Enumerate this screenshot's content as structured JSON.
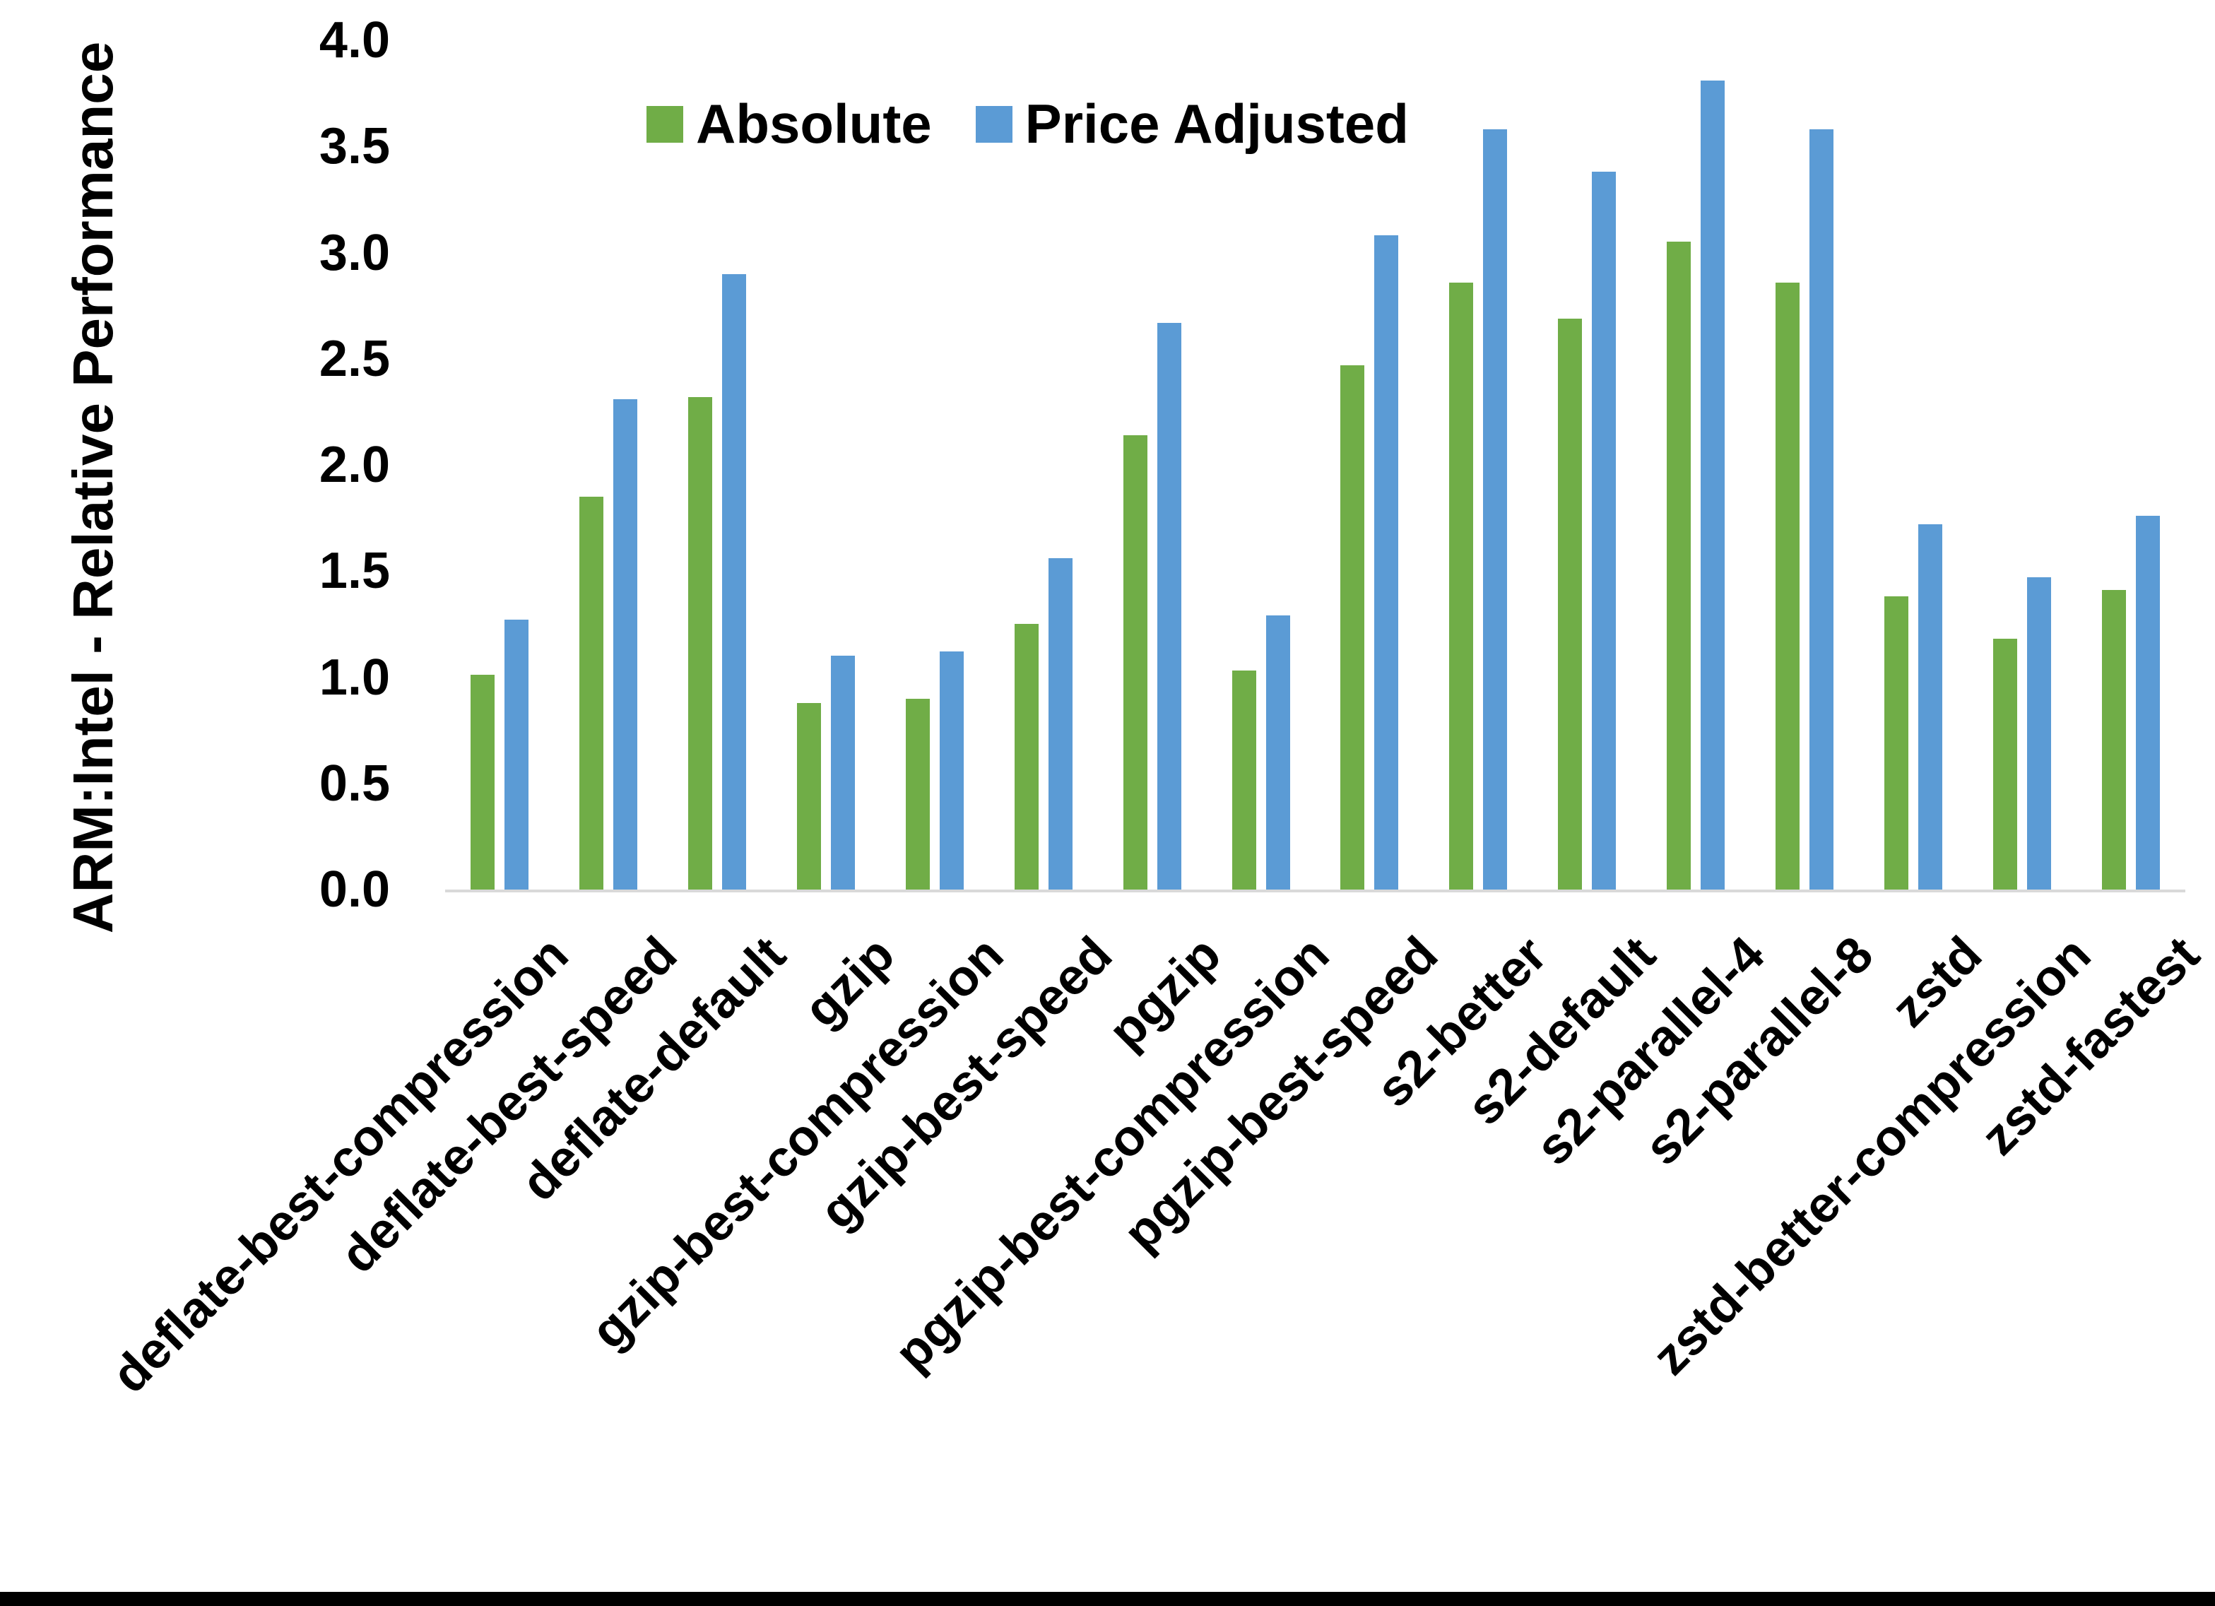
{
  "page": {
    "background": "#ffffff",
    "bottom_border_color": "#000000"
  },
  "chart_data": {
    "type": "bar",
    "title": "",
    "xlabel": "",
    "ylabel": "ARM:Intel - Relative Performance",
    "ylim": [
      0.0,
      4.0
    ],
    "ytick_step": 0.5,
    "yticks": [
      "0.0",
      "0.5",
      "1.0",
      "1.5",
      "2.0",
      "2.5",
      "3.0",
      "3.5",
      "4.0"
    ],
    "grid": false,
    "legend_position": "top-center",
    "axis_line_color": "#D9D9D9",
    "text_color": "#000000",
    "categories": [
      "deflate-best-compression",
      "deflate-best-speed",
      "deflate-default",
      "gzip",
      "gzip-best-compression",
      "gzip-best-speed",
      "pgzip",
      "pgzip-best-compression",
      "pgzip-best-speed",
      "s2-better",
      "s2-default",
      "s2-parallel-4",
      "s2-parallel-8",
      "zstd",
      "zstd-better-compression",
      "zstd-fastest"
    ],
    "series": [
      {
        "name": "Absolute",
        "color": "#70AD47",
        "values": [
          1.01,
          1.85,
          2.32,
          0.88,
          0.9,
          1.25,
          2.14,
          1.03,
          2.47,
          2.86,
          2.69,
          3.05,
          2.86,
          1.38,
          1.18,
          1.41
        ]
      },
      {
        "name": "Price Adjusted",
        "color": "#5B9BD5",
        "values": [
          1.27,
          2.31,
          2.9,
          1.1,
          1.12,
          1.56,
          2.67,
          1.29,
          3.08,
          3.58,
          3.38,
          3.81,
          3.58,
          1.72,
          1.47,
          1.76
        ]
      }
    ]
  }
}
